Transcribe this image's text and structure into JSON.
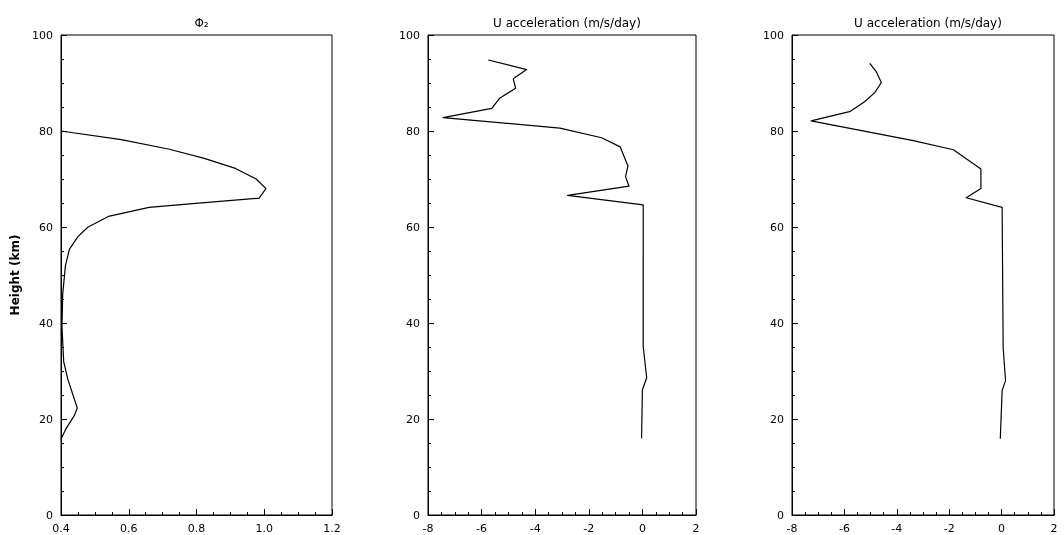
{
  "chart_data": [
    {
      "type": "line",
      "title": "Φ₂",
      "ylabel": "Height (km)",
      "color": "#000000",
      "x": [
        0.4,
        0.415,
        0.44,
        0.448,
        0.44,
        0.42,
        0.408,
        0.403,
        0.405,
        0.413,
        0.425,
        0.45,
        0.48,
        0.54,
        0.66,
        0.78,
        0.985,
        1.005,
        0.976,
        0.915,
        0.823,
        0.72,
        0.578,
        0.4
      ],
      "values": [
        15.8,
        18,
        20.8,
        22.3,
        24,
        28.3,
        31.9,
        39,
        46,
        51.9,
        55.4,
        58,
        60,
        62.2,
        64.1,
        64.8,
        66,
        68,
        70,
        72.2,
        74.3,
        76.2,
        78.2,
        80
      ],
      "xlim": [
        0.4,
        1.2
      ],
      "xticks": [
        0.4,
        0.6,
        0.8,
        {
          "value": 1,
          "label": "1.0"
        },
        1.2
      ],
      "ylim": [
        0,
        100
      ],
      "yticks": [
        0,
        20,
        40,
        60,
        80,
        100
      ]
    },
    {
      "type": "line",
      "title": "U acceleration (m/s/day)",
      "color": "#000000",
      "x": [
        -5.75,
        -4.32,
        -4.82,
        -4.73,
        -5.33,
        -5.62,
        -7.44,
        -3.08,
        -1.52,
        -0.83,
        -0.54,
        -0.63,
        -0.5,
        -2.79,
        0.03,
        0.03,
        0.16,
        0,
        -0.03
      ],
      "values": [
        94.8,
        92.8,
        90.9,
        88.9,
        86.8,
        84.7,
        82.8,
        80.6,
        78.6,
        76.7,
        72.7,
        70.5,
        68.5,
        66.6,
        64.6,
        35.1,
        28.6,
        26.1,
        16
      ],
      "xlim": [
        -8,
        2
      ],
      "xticks": [
        -8,
        -6,
        -4,
        -2,
        0,
        2
      ],
      "ylim": [
        0,
        100
      ],
      "yticks": [
        0,
        20,
        40,
        60,
        80,
        100
      ]
    },
    {
      "type": "line",
      "title": "U acceleration (m/s/day)",
      "color": "#000000",
      "x": [
        -5.03,
        -4.78,
        -4.59,
        -4.84,
        -5.23,
        -5.77,
        -7.27,
        -3.37,
        -1.84,
        -0.79,
        -0.79,
        -1.35,
        0.02,
        0.06,
        0.15,
        0.02,
        -0.05
      ],
      "values": [
        94.1,
        92.3,
        90.1,
        88,
        86.1,
        84.1,
        82.1,
        78,
        76.1,
        72.1,
        68,
        66.1,
        64.1,
        34.8,
        28,
        25.9,
        15.9
      ],
      "xlim": [
        -8,
        2
      ],
      "xticks": [
        -8,
        -6,
        -4,
        -2,
        0,
        2
      ],
      "ylim": [
        0,
        100
      ],
      "yticks": [
        0,
        20,
        40,
        60,
        80,
        100
      ]
    }
  ]
}
